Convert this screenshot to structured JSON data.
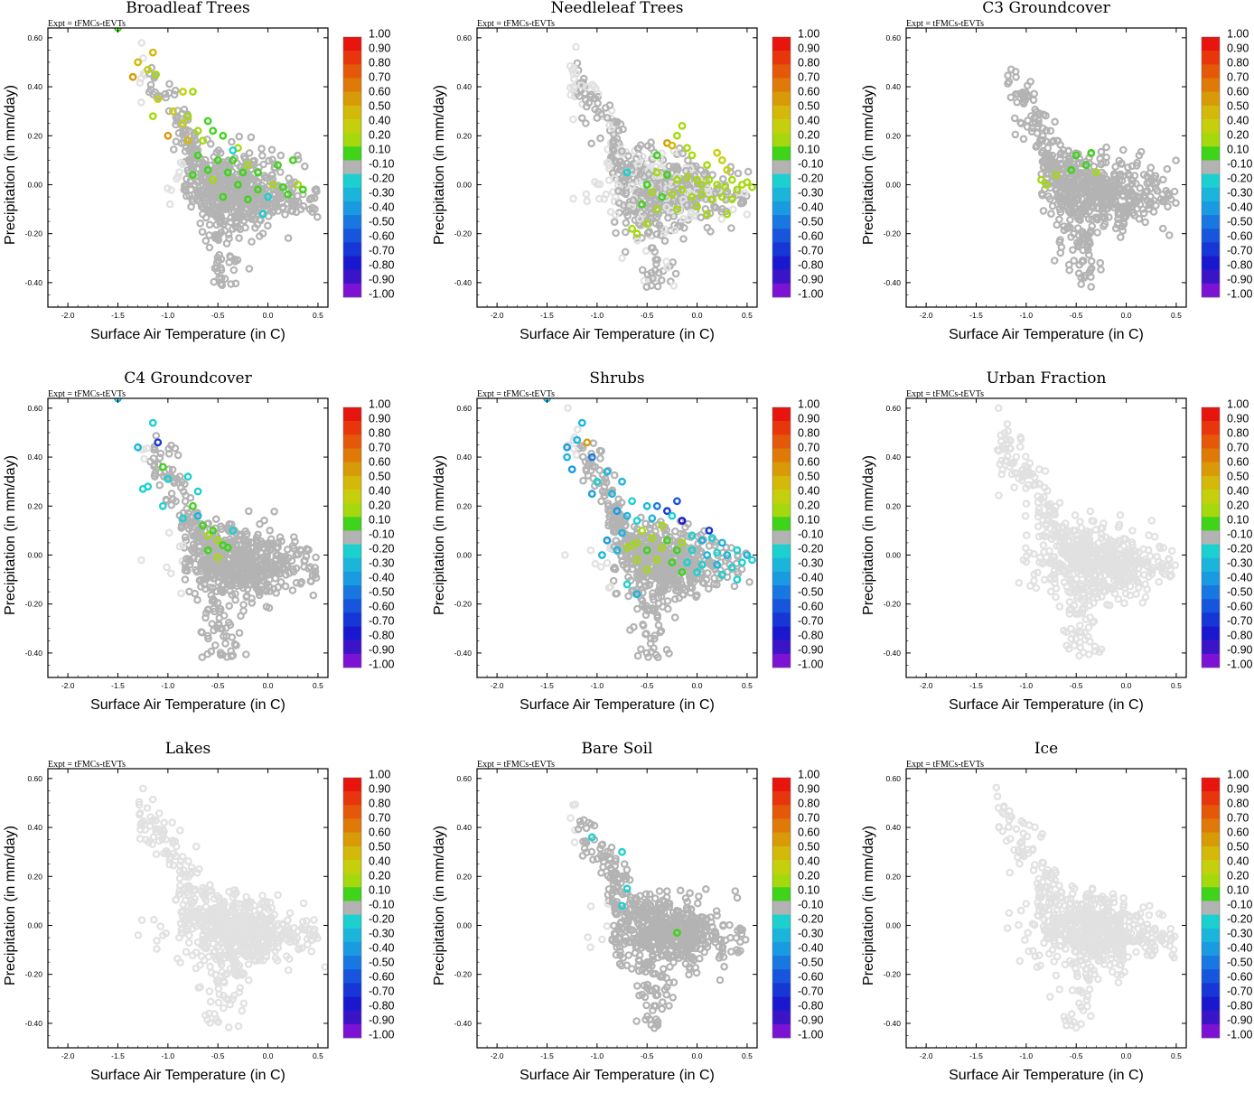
{
  "figure": {
    "expt_label": "Expt = tFMCs-tEVTs",
    "colors": {
      "background_points": "#e1e1e1",
      "neutral_points": "#b3b3b3",
      "axis": "#000000"
    }
  },
  "chart_data": [
    {
      "type": "scatter",
      "title": "Broadleaf Trees",
      "xlabel": "Surface Air Temperature (in C)",
      "ylabel": "Precipitation (in mm/day)",
      "xlim": [
        -2.2,
        0.6
      ],
      "ylim": [
        -0.5,
        0.64
      ],
      "xticks": [
        "-2.0",
        "-1.5",
        "-1.0",
        "-0.5",
        "0.0",
        "0.5"
      ],
      "yticks": [
        "-0.40",
        "-0.20",
        "0.00",
        "0.20",
        "0.40",
        "0.60"
      ],
      "background_density": "light",
      "neutral_density": "dense",
      "seed": 11,
      "highlight_points": [
        [
          -1.5,
          0.64,
          0.1
        ],
        [
          -1.15,
          0.54,
          0.5
        ],
        [
          -1.3,
          0.5,
          0.5
        ],
        [
          -1.2,
          0.47,
          0.4
        ],
        [
          -1.35,
          0.44,
          0.6
        ],
        [
          -1.12,
          0.45,
          0.3
        ],
        [
          -0.85,
          0.38,
          0.4
        ],
        [
          -0.75,
          0.38,
          0.3
        ],
        [
          -1.1,
          0.35,
          0.4
        ],
        [
          -1.15,
          0.28,
          0.2
        ],
        [
          -0.95,
          0.3,
          0.4
        ],
        [
          -0.8,
          0.28,
          0.3
        ],
        [
          -0.7,
          0.22,
          0.3
        ],
        [
          -0.85,
          0.25,
          0.4
        ],
        [
          -1.0,
          0.2,
          0.6
        ],
        [
          -0.6,
          0.26,
          0.1
        ],
        [
          -0.55,
          0.22,
          0.1
        ],
        [
          -0.8,
          0.18,
          0.5
        ],
        [
          -0.65,
          0.18,
          0.2
        ],
        [
          -0.45,
          0.2,
          0.1
        ],
        [
          -0.3,
          0.15,
          0.2
        ],
        [
          -0.7,
          0.12,
          0.1
        ],
        [
          -0.5,
          0.1,
          0.1
        ],
        [
          -0.35,
          0.1,
          0.1
        ],
        [
          -0.2,
          0.08,
          0.2
        ],
        [
          -0.6,
          0.06,
          0.1
        ],
        [
          -0.4,
          0.05,
          0.1
        ],
        [
          -0.25,
          0.05,
          0.1
        ],
        [
          -0.1,
          0.05,
          0.1
        ],
        [
          0.1,
          0.08,
          0.1
        ],
        [
          0.25,
          0.1,
          0.1
        ],
        [
          -0.75,
          0.04,
          0.1
        ],
        [
          -0.55,
          0.02,
          0.3
        ],
        [
          -0.3,
          0.0,
          0.1
        ],
        [
          -0.1,
          -0.02,
          0.1
        ],
        [
          0.05,
          0.0,
          0.2
        ],
        [
          0.15,
          -0.01,
          0.1
        ],
        [
          0.3,
          0.0,
          0.2
        ],
        [
          0.35,
          -0.02,
          0.1
        ],
        [
          -0.45,
          -0.05,
          0.1
        ],
        [
          -0.2,
          -0.06,
          0.1
        ],
        [
          0.0,
          -0.05,
          -0.2
        ],
        [
          0.2,
          -0.04,
          0.1
        ],
        [
          -0.05,
          -0.12,
          -0.2
        ],
        [
          -0.35,
          0.14,
          -0.2
        ]
      ]
    },
    {
      "type": "scatter",
      "title": "Needleleaf Trees",
      "xlabel": "Surface Air Temperature (in C)",
      "ylabel": "Precipitation (in mm/day)",
      "xlim": [
        -2.2,
        0.6
      ],
      "ylim": [
        -0.5,
        0.64
      ],
      "xticks": [
        "-2.0",
        "-1.5",
        "-1.0",
        "-0.5",
        "0.0",
        "0.5"
      ],
      "yticks": [
        "-0.40",
        "-0.20",
        "0.00",
        "0.20",
        "0.40",
        "0.60"
      ],
      "background_density": "dense",
      "neutral_density": "medium",
      "seed": 23,
      "highlight_points": [
        [
          -0.3,
          0.17,
          0.6
        ],
        [
          -0.25,
          0.16,
          0.5
        ],
        [
          -0.15,
          0.24,
          0.2
        ],
        [
          -0.2,
          0.2,
          0.3
        ],
        [
          -0.05,
          0.12,
          0.2
        ],
        [
          0.1,
          0.08,
          0.2
        ],
        [
          0.25,
          0.1,
          0.4
        ],
        [
          0.3,
          0.06,
          0.4
        ],
        [
          -0.4,
          0.05,
          0.2
        ],
        [
          -0.3,
          0.04,
          0.1
        ],
        [
          -0.2,
          0.02,
          0.2
        ],
        [
          -0.1,
          0.03,
          0.3
        ],
        [
          0.0,
          0.02,
          0.2
        ],
        [
          0.05,
          0.0,
          0.3
        ],
        [
          0.12,
          0.02,
          0.2
        ],
        [
          0.2,
          0.0,
          0.3
        ],
        [
          0.28,
          -0.01,
          0.2
        ],
        [
          0.35,
          0.02,
          0.3
        ],
        [
          0.4,
          -0.02,
          0.2
        ],
        [
          0.45,
          0.0,
          0.2
        ],
        [
          0.5,
          0.01,
          0.3
        ],
        [
          0.55,
          -0.01,
          0.2
        ],
        [
          -0.5,
          0.0,
          0.1
        ],
        [
          -0.45,
          -0.03,
          0.2
        ],
        [
          -0.35,
          -0.05,
          0.1
        ],
        [
          -0.25,
          -0.04,
          0.2
        ],
        [
          -0.15,
          -0.02,
          0.3
        ],
        [
          -0.05,
          -0.05,
          0.2
        ],
        [
          0.05,
          -0.04,
          0.3
        ],
        [
          0.15,
          -0.06,
          0.2
        ],
        [
          0.25,
          -0.05,
          0.3
        ],
        [
          0.35,
          -0.06,
          0.2
        ],
        [
          -0.55,
          -0.08,
          0.1
        ],
        [
          -0.4,
          -0.1,
          0.3
        ],
        [
          -0.2,
          -0.1,
          0.2
        ],
        [
          0.0,
          -0.09,
          0.2
        ],
        [
          0.1,
          -0.12,
          0.3
        ],
        [
          0.3,
          -0.12,
          0.2
        ],
        [
          -0.5,
          -0.16,
          0.2
        ],
        [
          -0.6,
          -0.2,
          0.3
        ],
        [
          -0.65,
          -0.18,
          0.2
        ],
        [
          -0.7,
          0.05,
          -0.2
        ],
        [
          -0.4,
          0.12,
          0.1
        ],
        [
          -0.1,
          0.15,
          0.3
        ],
        [
          0.2,
          0.13,
          0.4
        ]
      ]
    },
    {
      "type": "scatter",
      "title": "C3 Groundcover",
      "xlabel": "Surface Air Temperature (in C)",
      "ylabel": "Precipitation (in mm/day)",
      "xlim": [
        -2.2,
        0.6
      ],
      "ylim": [
        -0.5,
        0.64
      ],
      "xticks": [
        "-2.0",
        "-1.5",
        "-1.0",
        "-0.5",
        "0.0",
        "0.5"
      ],
      "yticks": [
        "-0.40",
        "-0.20",
        "0.00",
        "0.20",
        "0.40",
        "0.60"
      ],
      "background_density": "none",
      "neutral_density": "dense",
      "seed": 37,
      "highlight_points": [
        [
          -0.85,
          0.02,
          0.3
        ],
        [
          -0.8,
          0.0,
          0.2
        ],
        [
          -0.7,
          0.04,
          0.2
        ],
        [
          -0.55,
          0.06,
          0.1
        ],
        [
          -0.5,
          0.12,
          0.1
        ],
        [
          -0.4,
          0.08,
          0.1
        ],
        [
          -0.35,
          0.13,
          0.1
        ],
        [
          -0.3,
          0.05,
          0.2
        ]
      ]
    },
    {
      "type": "scatter",
      "title": "C4 Groundcover",
      "xlabel": "Surface Air Temperature (in C)",
      "ylabel": "Precipitation (in mm/day)",
      "xlim": [
        -2.2,
        0.6
      ],
      "ylim": [
        -0.5,
        0.64
      ],
      "xticks": [
        "-2.0",
        "-1.5",
        "-1.0",
        "-0.5",
        "0.0",
        "0.5"
      ],
      "yticks": [
        "-0.40",
        "-0.20",
        "0.00",
        "0.20",
        "0.40",
        "0.60"
      ],
      "background_density": "light",
      "neutral_density": "dense",
      "seed": 41,
      "highlight_points": [
        [
          -1.5,
          0.64,
          -0.3
        ],
        [
          -1.15,
          0.54,
          -0.2
        ],
        [
          -1.3,
          0.44,
          -0.3
        ],
        [
          -1.1,
          0.46,
          -0.7
        ],
        [
          -1.05,
          0.36,
          0.1
        ],
        [
          -1.2,
          0.28,
          -0.2
        ],
        [
          -1.0,
          0.31,
          -0.2
        ],
        [
          -0.8,
          0.32,
          -0.2
        ],
        [
          -1.25,
          0.27,
          -0.2
        ],
        [
          -0.7,
          0.26,
          -0.2
        ],
        [
          -1.05,
          0.2,
          -0.2
        ],
        [
          -0.75,
          0.2,
          0.1
        ],
        [
          -0.85,
          0.15,
          -0.2
        ],
        [
          -0.65,
          0.12,
          0.1
        ],
        [
          -0.6,
          0.08,
          0.2
        ],
        [
          -0.55,
          0.1,
          0.1
        ],
        [
          -0.5,
          0.06,
          0.2
        ],
        [
          -0.45,
          0.04,
          0.1
        ],
        [
          -0.4,
          0.03,
          0.1
        ],
        [
          -0.35,
          0.1,
          -0.2
        ],
        [
          -0.6,
          0.02,
          0.1
        ],
        [
          -0.5,
          -0.01,
          0.2
        ],
        [
          -0.7,
          0.16,
          -0.3
        ]
      ]
    },
    {
      "type": "scatter",
      "title": "Shrubs",
      "xlabel": "Surface Air Temperature (in C)",
      "ylabel": "Precipitation (in mm/day)",
      "xlim": [
        -2.2,
        0.6
      ],
      "ylim": [
        -0.5,
        0.64
      ],
      "xticks": [
        "-2.0",
        "-1.5",
        "-1.0",
        "-0.5",
        "0.0",
        "0.5"
      ],
      "yticks": [
        "-0.40",
        "-0.20",
        "0.00",
        "0.20",
        "0.40",
        "0.60"
      ],
      "background_density": "light",
      "neutral_density": "dense",
      "seed": 53,
      "highlight_points": [
        [
          -1.5,
          0.64,
          -0.3
        ],
        [
          -1.15,
          0.54,
          -0.3
        ],
        [
          -1.3,
          0.44,
          -0.4
        ],
        [
          -1.2,
          0.47,
          -0.3
        ],
        [
          -1.1,
          0.46,
          0.6
        ],
        [
          -1.05,
          0.4,
          -0.5
        ],
        [
          -1.25,
          0.35,
          -0.4
        ],
        [
          -0.9,
          0.34,
          -0.3
        ],
        [
          -0.75,
          0.3,
          -0.3
        ],
        [
          -1.0,
          0.3,
          -0.2
        ],
        [
          -1.05,
          0.25,
          -0.4
        ],
        [
          -0.85,
          0.25,
          -0.3
        ],
        [
          -0.65,
          0.22,
          -0.2
        ],
        [
          -0.5,
          0.2,
          -0.3
        ],
        [
          -0.4,
          0.2,
          -0.5
        ],
        [
          -0.2,
          0.22,
          -0.6
        ],
        [
          -0.3,
          0.18,
          -0.7
        ],
        [
          -0.8,
          0.18,
          -0.4
        ],
        [
          -0.7,
          0.16,
          -0.3
        ],
        [
          -0.6,
          0.14,
          -0.2
        ],
        [
          -0.45,
          0.15,
          -0.3
        ],
        [
          -0.25,
          0.16,
          -0.2
        ],
        [
          -0.15,
          0.14,
          -0.8
        ],
        [
          -0.35,
          0.12,
          0.3
        ],
        [
          -0.55,
          0.1,
          0.2
        ],
        [
          -0.75,
          0.09,
          -0.3
        ],
        [
          -0.9,
          0.06,
          -0.4
        ],
        [
          -0.6,
          0.05,
          0.3
        ],
        [
          -0.45,
          0.07,
          0.2
        ],
        [
          -0.3,
          0.06,
          0.1
        ],
        [
          -0.15,
          0.05,
          0.3
        ],
        [
          -0.05,
          0.08,
          -0.2
        ],
        [
          0.05,
          0.06,
          -0.3
        ],
        [
          0.15,
          0.07,
          -0.2
        ],
        [
          0.25,
          0.05,
          -0.3
        ],
        [
          0.12,
          0.1,
          -0.7
        ],
        [
          -0.7,
          0.03,
          0.2
        ],
        [
          -0.5,
          0.02,
          0.1
        ],
        [
          -0.35,
          0.03,
          0.2
        ],
        [
          -0.2,
          0.02,
          0.1
        ],
        [
          -0.05,
          0.02,
          -0.2
        ],
        [
          0.1,
          0.0,
          -0.3
        ],
        [
          0.2,
          0.01,
          -0.2
        ],
        [
          0.3,
          0.0,
          -0.3
        ],
        [
          0.4,
          0.02,
          -0.2
        ],
        [
          0.5,
          0.0,
          -0.3
        ],
        [
          0.55,
          -0.02,
          -0.2
        ],
        [
          -0.6,
          -0.02,
          0.2
        ],
        [
          -0.4,
          -0.02,
          0.3
        ],
        [
          -0.25,
          -0.03,
          0.1
        ],
        [
          -0.1,
          -0.03,
          -0.2
        ],
        [
          0.05,
          -0.04,
          -0.2
        ],
        [
          0.2,
          -0.04,
          -0.3
        ],
        [
          0.35,
          -0.05,
          -0.2
        ],
        [
          0.45,
          -0.03,
          -0.2
        ],
        [
          -0.5,
          -0.06,
          0.2
        ],
        [
          -0.15,
          -0.07,
          0.1
        ],
        [
          0.0,
          -0.07,
          -0.2
        ],
        [
          0.25,
          -0.08,
          -0.2
        ],
        [
          -0.6,
          -0.16,
          -0.3
        ],
        [
          -0.7,
          -0.12,
          -0.2
        ],
        [
          0.4,
          -0.1,
          -0.2
        ],
        [
          -0.8,
          0.02,
          -0.3
        ],
        [
          -0.95,
          0.0,
          -0.3
        ],
        [
          -1.3,
          0.4,
          -0.3
        ],
        [
          -0.65,
          0.04,
          0.3
        ]
      ]
    },
    {
      "type": "scatter",
      "title": "Urban Fraction",
      "xlabel": "Surface Air Temperature (in C)",
      "ylabel": "Precipitation (in mm/day)",
      "xlim": [
        -2.2,
        0.6
      ],
      "ylim": [
        -0.5,
        0.64
      ],
      "xticks": [
        "-2.0",
        "-1.5",
        "-1.0",
        "-0.5",
        "0.0",
        "0.5"
      ],
      "yticks": [
        "-0.40",
        "-0.20",
        "0.00",
        "0.20",
        "0.40",
        "0.60"
      ],
      "background_density": "all",
      "neutral_density": "none",
      "seed": 61,
      "highlight_points": []
    },
    {
      "type": "scatter",
      "title": "Lakes",
      "xlabel": "Surface Air Temperature (in C)",
      "ylabel": "Precipitation (in mm/day)",
      "xlim": [
        -2.2,
        0.6
      ],
      "ylim": [
        -0.5,
        0.64
      ],
      "xticks": [
        "-2.0",
        "-1.5",
        "-1.0",
        "-0.5",
        "0.0",
        "0.5"
      ],
      "yticks": [
        "-0.40",
        "-0.20",
        "0.00",
        "0.20",
        "0.40",
        "0.60"
      ],
      "background_density": "all",
      "neutral_density": "none",
      "seed": 67,
      "highlight_points": []
    },
    {
      "type": "scatter",
      "title": "Bare Soil",
      "xlabel": "Surface Air Temperature (in C)",
      "ylabel": "Precipitation (in mm/day)",
      "xlim": [
        -2.2,
        0.6
      ],
      "ylim": [
        -0.5,
        0.64
      ],
      "xticks": [
        "-2.0",
        "-1.5",
        "-1.0",
        "-0.5",
        "0.0",
        "0.5"
      ],
      "yticks": [
        "-0.40",
        "-0.20",
        "0.00",
        "0.20",
        "0.40",
        "0.60"
      ],
      "background_density": "light",
      "neutral_density": "dense",
      "seed": 71,
      "highlight_points": [
        [
          -1.05,
          0.36,
          -0.2
        ],
        [
          -0.75,
          0.3,
          -0.2
        ],
        [
          -0.7,
          0.15,
          -0.2
        ],
        [
          -0.75,
          0.08,
          -0.2
        ],
        [
          -0.2,
          -0.03,
          0.1
        ]
      ]
    },
    {
      "type": "scatter",
      "title": "Ice",
      "xlabel": "Surface Air Temperature (in C)",
      "ylabel": "Precipitation (in mm/day)",
      "xlim": [
        -2.2,
        0.6
      ],
      "ylim": [
        -0.5,
        0.64
      ],
      "xticks": [
        "-2.0",
        "-1.5",
        "-1.0",
        "-0.5",
        "0.0",
        "0.5"
      ],
      "yticks": [
        "-0.40",
        "-0.20",
        "0.00",
        "0.20",
        "0.40",
        "0.60"
      ],
      "background_density": "all",
      "neutral_density": "none",
      "seed": 79,
      "highlight_points": []
    }
  ],
  "colorbar": {
    "labels": [
      "1.00",
      "0.90",
      "0.80",
      "0.70",
      "0.60",
      "0.50",
      "0.40",
      "0.20",
      "0.10",
      "-0.10",
      "-0.20",
      "-0.30",
      "-0.40",
      "-0.50",
      "-0.60",
      "-0.70",
      "-0.80",
      "-0.90",
      "-1.00"
    ],
    "colors": [
      "#e8140e",
      "#e8360c",
      "#e5580a",
      "#df7a08",
      "#d89a06",
      "#d4b80a",
      "#c6cf0c",
      "#a5d90d",
      "#3fd31a",
      "#b3b3b3",
      "#1cd0d0",
      "#1bb5dc",
      "#1a9ae0",
      "#1877e0",
      "#1755dd",
      "#1636d6",
      "#1a18cf",
      "#3c14c8",
      "#7c12d4"
    ]
  }
}
